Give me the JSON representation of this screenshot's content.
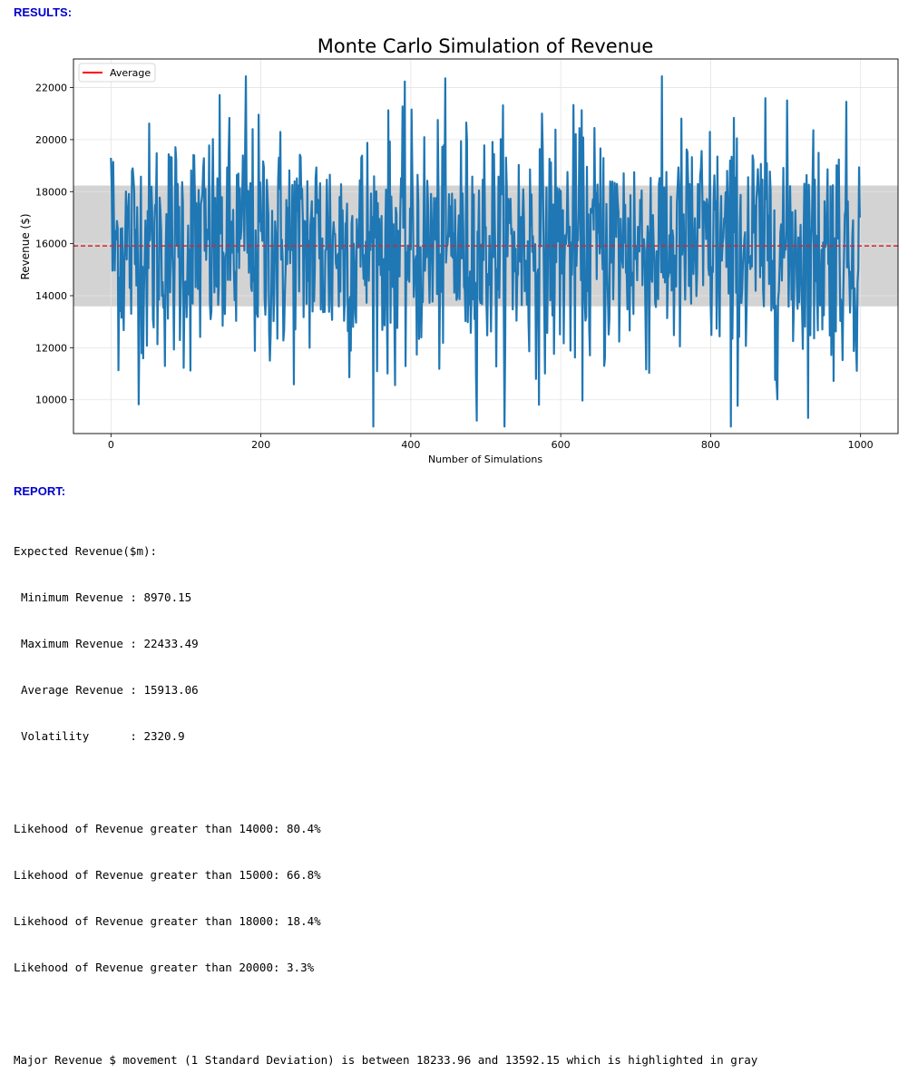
{
  "results_label": "RESULTS:",
  "report_label": "REPORT:",
  "chart_data": {
    "type": "line",
    "title": "Monte Carlo Simulation of Revenue",
    "xlabel": "Number of Simulations",
    "ylabel": "Revenue ($)",
    "xlim": [
      -50,
      1050
    ],
    "ylim": [
      8700,
      23100
    ],
    "x_ticks": [
      0,
      200,
      400,
      600,
      800,
      1000
    ],
    "y_ticks": [
      10000,
      12000,
      14000,
      16000,
      18000,
      20000,
      22000
    ],
    "grid": true,
    "legend": {
      "position": "top-left",
      "entries": [
        {
          "label": "Average",
          "color": "#ff0000"
        }
      ]
    },
    "series": [
      {
        "color": "#1f77b4",
        "n_points": 1000,
        "summary": {
          "min": 8970.15,
          "max": 22433.49,
          "mean": 15913.06,
          "std": 2320.9
        }
      }
    ],
    "average_line": {
      "value": 15913.06,
      "color": "#d62728",
      "style": "dashed"
    },
    "std_band": {
      "low": 13592.15,
      "high": 18233.96,
      "color": "#d3d3d3"
    }
  },
  "report": {
    "header": "Expected Revenue($m):",
    "stats": [
      "Minimum Revenue : 8970.15",
      "Maximum Revenue : 22433.49",
      "Average Revenue : 15913.06",
      "Volatility      : 2320.9"
    ],
    "likelihoods": [
      "Likehood of Revenue greater than 14000: 80.4%",
      "Likehood of Revenue greater than 15000: 66.8%",
      "Likehood of Revenue greater than 18000: 18.4%",
      "Likehood of Revenue greater than 20000: 3.3%"
    ],
    "summary": "Major Revenue $ movement (1 Standard Deviation) is between 18233.96 and 13592.15 which is highlighted in gray"
  }
}
